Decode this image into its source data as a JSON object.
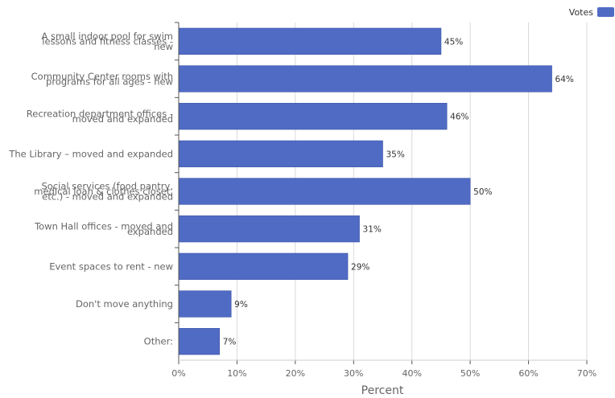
{
  "chart_data": {
    "type": "bar",
    "orientation": "horizontal",
    "categories": [
      [
        "A small indoor pool for swim",
        "lessons and fitness classes -",
        "new"
      ],
      [
        "Community Center rooms with",
        "programs for all ages - new"
      ],
      [
        "Recreation department offices -",
        "moved and expanded"
      ],
      [
        "The Library – moved and expanded"
      ],
      [
        "Social services (food pantry,",
        "medical loan & clothes closet,",
        "etc.) - moved and expanded"
      ],
      [
        "Town Hall offices - moved and",
        "expanded"
      ],
      [
        "Event spaces to rent - new"
      ],
      [
        "Don't move anything"
      ],
      [
        "Other:"
      ]
    ],
    "series": [
      {
        "name": "Votes",
        "values": [
          45,
          64,
          46,
          35,
          50,
          31,
          29,
          9,
          7
        ],
        "color": "#4f6bc4"
      }
    ],
    "data_labels": [
      "45%",
      "64%",
      "46%",
      "35%",
      "50%",
      "31%",
      "29%",
      "9%",
      "7%"
    ],
    "xlabel": "Percent",
    "xlim": [
      0,
      70
    ],
    "xticks": [
      0,
      10,
      20,
      30,
      40,
      50,
      60,
      70
    ],
    "xtick_labels": [
      "0%",
      "10%",
      "20%",
      "30%",
      "40%",
      "50%",
      "60%",
      "70%"
    ],
    "grid": true,
    "legend": {
      "position": "top-right",
      "entries": [
        "Votes"
      ]
    }
  }
}
